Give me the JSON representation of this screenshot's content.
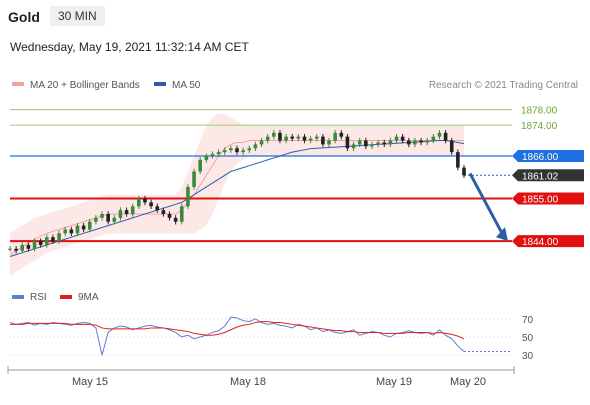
{
  "header": {
    "symbol": "Gold",
    "timeframe": "30 MIN",
    "datetime": "Wednesday, May 19, 2021 11:32:14 AM CET"
  },
  "colors": {
    "bollinger": "#f5a0a0",
    "bollinger_fill": "#fde8e8",
    "ma50": "#2a5fa8",
    "rsi": "#5b7fd4",
    "ma9": "#e02020",
    "support": "#e01010",
    "resistance_green": "#9ccc65",
    "blue_level": "#1e6fe0",
    "current_price": "#333333",
    "candle_up": "#3a8a3a",
    "candle_down": "#222222",
    "arrow": "#2a5fa8"
  },
  "chart_data": [
    {
      "type": "line",
      "name": "price",
      "legend": [
        {
          "name": "MA 20 + Bollinger Bands",
          "color": "#f5a0a0"
        },
        {
          "name": "MA 50",
          "color": "#2a5fa8"
        }
      ],
      "legend_placement": "top-left",
      "source_note": "Research © 2021 Trading Central",
      "ylim": [
        1836,
        1881
      ],
      "levels": [
        {
          "label": "1878.00",
          "value": 1878.0,
          "style": "green-thin"
        },
        {
          "label": "1874.00",
          "value": 1874.0,
          "style": "green-thin"
        },
        {
          "label": "1866.00",
          "value": 1866.0,
          "style": "blue-tag"
        },
        {
          "label": "1861.02",
          "value": 1861.02,
          "style": "dark-tag"
        },
        {
          "label": "1855.00",
          "value": 1855.0,
          "style": "red-tag"
        },
        {
          "label": "1844.00",
          "value": 1844.0,
          "style": "red-tag"
        }
      ],
      "series": [
        {
          "key": "close",
          "values": [
            1842,
            1841.5,
            1843,
            1842,
            1844,
            1843,
            1845,
            1844,
            1846,
            1847,
            1846,
            1848,
            1847,
            1849,
            1850,
            1851,
            1849,
            1850,
            1852,
            1851,
            1853,
            1855,
            1854,
            1853,
            1852,
            1851,
            1850,
            1849,
            1853,
            1858,
            1862,
            1865,
            1866,
            1866.5,
            1867,
            1867.5,
            1868,
            1867,
            1867.5,
            1868,
            1869,
            1870,
            1871,
            1872,
            1870,
            1871,
            1870.5,
            1871,
            1870,
            1870.5,
            1871,
            1869,
            1870,
            1872,
            1871,
            1868,
            1869,
            1870,
            1868.5,
            1869,
            1869.5,
            1869,
            1870,
            1871,
            1870,
            1869,
            1870,
            1869.5,
            1870,
            1871,
            1872,
            1870,
            1867,
            1863,
            1861
          ]
        },
        {
          "key": "ma50",
          "values": [
            1840,
            1840.5,
            1841,
            1841.5,
            1842,
            1842.5,
            1843,
            1843.5,
            1844,
            1844.5,
            1845,
            1845.5,
            1846,
            1846.5,
            1847,
            1847.5,
            1848,
            1848.5,
            1849,
            1849.5,
            1850,
            1850.5,
            1851,
            1851.5,
            1852,
            1852.5,
            1853,
            1853.5,
            1854,
            1855,
            1856,
            1857,
            1858,
            1859,
            1860,
            1861,
            1862,
            1862.5,
            1863,
            1863.5,
            1864,
            1864.5,
            1865,
            1865.5,
            1866,
            1866.5,
            1867,
            1867.3,
            1867.6,
            1867.9,
            1868,
            1868.1,
            1868.2,
            1868.3,
            1868.4,
            1868.5,
            1868.6,
            1868.7,
            1868.8,
            1868.9,
            1869,
            1869.1,
            1869.2,
            1869.3,
            1869.4,
            1869.5,
            1869.6,
            1869.7,
            1869.8,
            1869.9,
            1870,
            1870,
            1869.8,
            1869.5,
            1869.2
          ]
        },
        {
          "key": "bb_upper",
          "values": [
            1846,
            1847,
            1848,
            1849,
            1850,
            1850.5,
            1851,
            1851.5,
            1852,
            1852.5,
            1853,
            1853.5,
            1854,
            1854.5,
            1855,
            1855.5,
            1856,
            1856,
            1856,
            1856,
            1856,
            1856,
            1856,
            1856,
            1856,
            1856,
            1856,
            1856,
            1858,
            1862,
            1866,
            1870,
            1874,
            1876,
            1877,
            1877,
            1876,
            1875,
            1874,
            1874,
            1874,
            1874,
            1874,
            1874,
            1874,
            1874,
            1874,
            1874,
            1874,
            1874,
            1874,
            1874,
            1874,
            1874,
            1874,
            1874,
            1874,
            1874,
            1874,
            1874,
            1874,
            1874,
            1874,
            1874,
            1874,
            1874,
            1874,
            1874,
            1874,
            1874,
            1874,
            1874,
            1874,
            1874,
            1874
          ]
        },
        {
          "key": "bb_lower",
          "values": [
            1835,
            1836,
            1837,
            1838,
            1839,
            1840,
            1841,
            1841.5,
            1842,
            1842.5,
            1843,
            1843.5,
            1844,
            1844.5,
            1845,
            1845.5,
            1846,
            1846,
            1846,
            1846,
            1846,
            1846,
            1846,
            1846,
            1846,
            1846,
            1846,
            1846,
            1846,
            1846,
            1846,
            1847,
            1848,
            1851,
            1855,
            1859,
            1862,
            1864,
            1865,
            1866,
            1866,
            1866,
            1866,
            1866,
            1866,
            1866,
            1866,
            1866,
            1866,
            1866,
            1866,
            1866,
            1866,
            1866,
            1866,
            1866,
            1866,
            1866,
            1866,
            1866,
            1866,
            1866,
            1866,
            1866,
            1866,
            1866,
            1866,
            1866,
            1866,
            1866,
            1866,
            1866,
            1866,
            1866,
            1866
          ]
        }
      ],
      "annotations": [
        {
          "type": "arrow",
          "from": 1861.5,
          "to": 1844.0,
          "direction": "down"
        }
      ]
    },
    {
      "type": "line",
      "name": "rsi",
      "legend": [
        {
          "name": "RSI",
          "color": "#5b7fd4"
        },
        {
          "name": "9MA",
          "color": "#e02020"
        }
      ],
      "legend_placement": "top-left",
      "ylim": [
        18,
        82
      ],
      "y_ticks": [
        "70",
        "50",
        "30"
      ],
      "y_tick_values": [
        70,
        50,
        30
      ],
      "x_ticks": [
        "May 15",
        "May 18",
        "May 19",
        "May 20"
      ],
      "series": [
        {
          "key": "rsi",
          "values": [
            66,
            64,
            65,
            66,
            63,
            65,
            64,
            66,
            65,
            64,
            63,
            65,
            66,
            65,
            60,
            30,
            55,
            60,
            62,
            61,
            58,
            60,
            62,
            63,
            61,
            60,
            58,
            55,
            50,
            52,
            48,
            50,
            52,
            55,
            57,
            62,
            72,
            71,
            68,
            67,
            70,
            66,
            64,
            65,
            63,
            62,
            60,
            64,
            62,
            58,
            60,
            56,
            58,
            55,
            54,
            56,
            58,
            52,
            54,
            56,
            55,
            52,
            50,
            54,
            55,
            57,
            55,
            54,
            55,
            52,
            58,
            52,
            48,
            40,
            34
          ]
        },
        {
          "key": "ma9",
          "values": [
            64,
            64,
            64,
            65,
            65,
            65,
            65,
            65,
            65,
            65,
            64,
            64,
            64,
            64,
            63,
            60,
            59,
            59,
            59,
            59,
            59,
            59,
            59,
            60,
            60,
            60,
            59,
            58,
            57,
            56,
            54,
            53,
            52,
            52,
            53,
            55,
            58,
            61,
            63,
            64,
            66,
            67,
            67,
            66,
            66,
            65,
            64,
            63,
            62,
            61,
            60,
            59,
            58,
            57,
            57,
            56,
            56,
            55,
            55,
            55,
            55,
            54,
            54,
            54,
            54,
            55,
            55,
            55,
            55,
            54,
            55,
            54,
            53,
            51,
            48
          ]
        }
      ]
    }
  ]
}
